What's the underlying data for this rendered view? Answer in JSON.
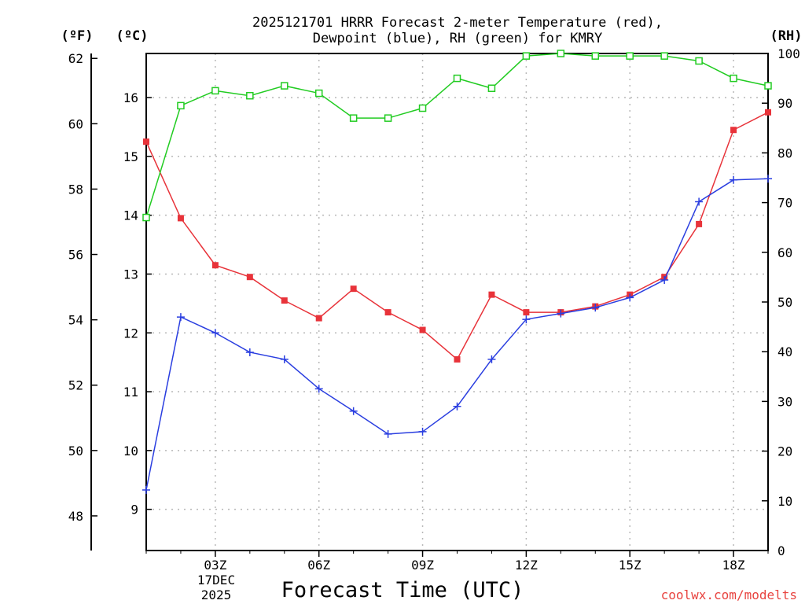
{
  "chart_data": {
    "type": "line",
    "title": [
      "2025121701 HRRR Forecast 2-meter Temperature (red),",
      "Dewpoint (blue), RH (green) for KMRY"
    ],
    "xlabel": "Forecast Time (UTC)",
    "date_label": [
      "17DEC",
      "2025"
    ],
    "credit": "coolwx.com/modelts",
    "units": {
      "fahrenheit": "(ºF)",
      "celsius": "(ºC)",
      "rh": "(RH)"
    },
    "x": [
      1,
      2,
      3,
      4,
      5,
      6,
      7,
      8,
      9,
      10,
      11,
      12,
      13,
      14,
      15,
      16,
      17,
      18,
      19
    ],
    "xlim": [
      1,
      19
    ],
    "x_ticks": [
      {
        "hour": 3,
        "label": "03Z"
      },
      {
        "hour": 6,
        "label": "06Z"
      },
      {
        "hour": 9,
        "label": "09Z"
      },
      {
        "hour": 12,
        "label": "12Z"
      },
      {
        "hour": 15,
        "label": "15Z"
      },
      {
        "hour": 18,
        "label": "18Z"
      }
    ],
    "celsius_axis": {
      "range": [
        8.3,
        16.75
      ],
      "ticks": [
        9,
        10,
        11,
        12,
        13,
        14,
        15,
        16
      ]
    },
    "fahrenheit_axis": {
      "range": [
        46.94,
        62.15
      ],
      "ticks": [
        48,
        50,
        52,
        54,
        56,
        58,
        60,
        62
      ]
    },
    "rh_axis": {
      "range": [
        0,
        100
      ],
      "ticks": [
        0,
        10,
        20,
        30,
        40,
        50,
        60,
        70,
        80,
        90,
        100
      ]
    },
    "grid": true,
    "series": [
      {
        "name": "Temperature",
        "axis": "celsius",
        "color": "#e8333a",
        "marker": "filled-square",
        "values": [
          15.25,
          13.95,
          13.15,
          12.95,
          12.55,
          12.25,
          12.75,
          12.35,
          12.05,
          11.55,
          12.65,
          12.35,
          12.35,
          12.45,
          12.65,
          12.95,
          13.85,
          15.45,
          15.75
        ]
      },
      {
        "name": "Dewpoint",
        "axis": "celsius",
        "color": "#2a3ee0",
        "marker": "plus",
        "values": [
          9.33,
          12.27,
          12.0,
          11.67,
          11.55,
          11.05,
          10.67,
          10.28,
          10.32,
          10.75,
          11.55,
          12.23,
          12.33,
          12.43,
          12.6,
          12.9,
          14.23,
          14.6,
          14.62
        ]
      },
      {
        "name": "RH",
        "axis": "rh",
        "color": "#22cc22",
        "marker": "open-square",
        "values": [
          67,
          89.5,
          92.5,
          91.5,
          93.5,
          92,
          87,
          87,
          89,
          95,
          93,
          99.5,
          100,
          99.5,
          99.5,
          99.5,
          98.5,
          95,
          93.5
        ]
      }
    ]
  }
}
